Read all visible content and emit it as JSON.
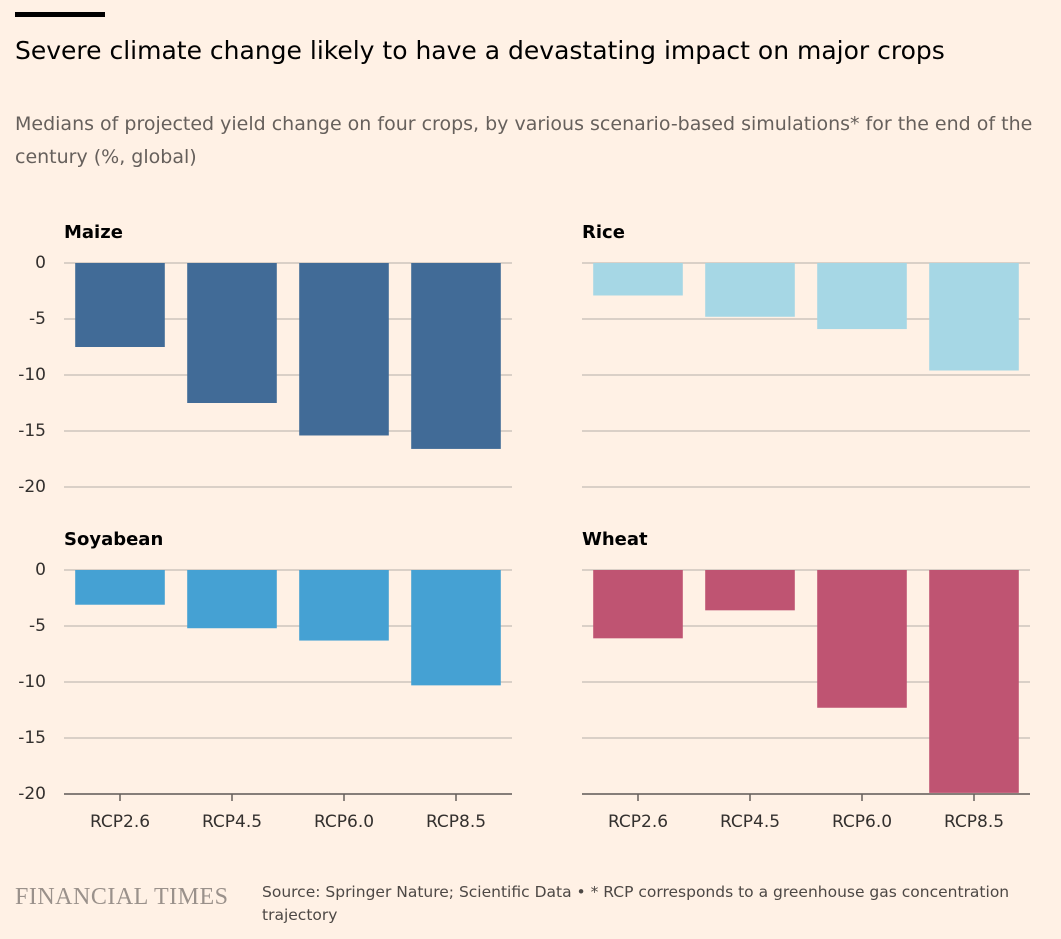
{
  "title": "Severe climate change likely to have a devastating impact on major crops",
  "subtitle": "Medians of projected yield change on four crops, by various scenario-based simulations* for the end of the century (%, global)",
  "brand": "FINANCIAL TIMES",
  "source": "Source: Springer Nature; Scientific Data • * RCP corresponds to a greenhouse gas concentration trajectory",
  "chart_data": [
    {
      "type": "bar",
      "title": "Maize",
      "categories": [
        null,
        null,
        null,
        null
      ],
      "values": [
        -7.5,
        -12.5,
        -15.4,
        -16.6
      ],
      "color": "#416b97",
      "ylim": [
        -20,
        0
      ],
      "yticks": [
        0,
        -5,
        -10,
        -15,
        -20
      ],
      "ytick_labels": true,
      "grid": true
    },
    {
      "type": "bar",
      "title": "Rice",
      "categories": [
        null,
        null,
        null,
        null
      ],
      "values": [
        -2.9,
        -4.8,
        -5.9,
        -9.6
      ],
      "color": "#a6d7e5",
      "ylim": [
        -20,
        0
      ],
      "yticks": [
        0,
        -5,
        -10,
        -15,
        -20
      ],
      "ytick_labels": false,
      "grid": true
    },
    {
      "type": "bar",
      "title": "Soyabean",
      "categories": [
        "RCP2.6",
        "RCP4.5",
        "RCP6.0",
        "RCP8.5"
      ],
      "values": [
        -3.1,
        -5.2,
        -6.3,
        -10.3
      ],
      "color": "#45a1d3",
      "ylim": [
        -20,
        0
      ],
      "yticks": [
        0,
        -5,
        -10,
        -15,
        -20
      ],
      "ytick_labels": true,
      "grid": true
    },
    {
      "type": "bar",
      "title": "Wheat",
      "categories": [
        "RCP2.6",
        "RCP4.5",
        "RCP6.0",
        "RCP8.5"
      ],
      "values": [
        -6.1,
        -3.6,
        -12.3,
        -19.9
      ],
      "color": "#bf5472",
      "ylim": [
        -20,
        0
      ],
      "yticks": [
        0,
        -5,
        -10,
        -15,
        -20
      ],
      "ytick_labels": false,
      "grid": true
    }
  ]
}
